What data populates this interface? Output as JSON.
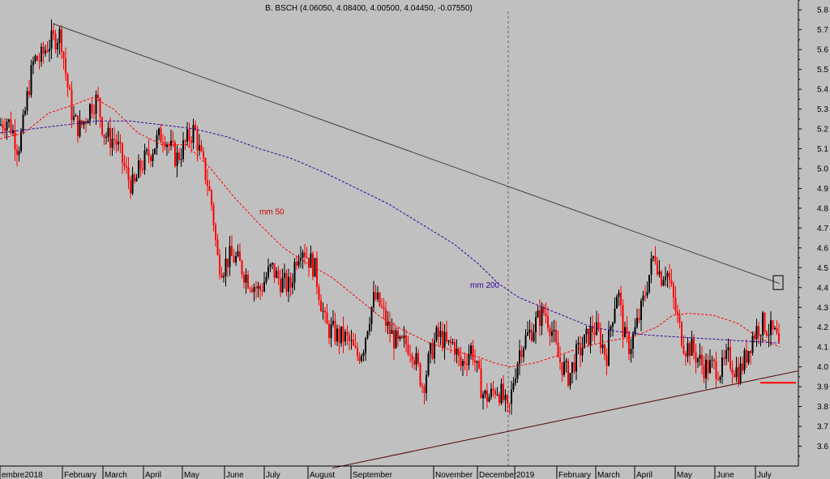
{
  "chart_data": {
    "type": "candlestick",
    "title": "B. BSCH (4.06050, 4.08400, 4.00500, 4.04450, -0.07550)",
    "ylim": [
      3.5,
      5.85
    ],
    "y_ticks": [
      3.6,
      3.7,
      3.8,
      3.9,
      4.0,
      4.1,
      4.2,
      4.3,
      4.4,
      4.5,
      4.6,
      4.7,
      4.8,
      4.9,
      5.0,
      5.1,
      5.2,
      5.3,
      5.4,
      5.5,
      5.6,
      5.7,
      5.8
    ],
    "x_ticks": [
      {
        "label": "embre2018",
        "t": 0
      },
      {
        "label": "February",
        "t": 77
      },
      {
        "label": "March",
        "t": 127
      },
      {
        "label": "April",
        "t": 177
      },
      {
        "label": "May",
        "t": 225
      },
      {
        "label": "June",
        "t": 277
      },
      {
        "label": "July",
        "t": 326
      },
      {
        "label": "August",
        "t": 380
      },
      {
        "label": "September",
        "t": 433
      },
      {
        "label": "November",
        "t": 535
      },
      {
        "label": "December",
        "t": 589
      },
      {
        "label": "2019",
        "t": 635
      },
      {
        "label": "February",
        "t": 687
      },
      {
        "label": "March",
        "t": 735
      },
      {
        "label": "April",
        "t": 783
      },
      {
        "label": "May",
        "t": 833
      },
      {
        "label": "June",
        "t": 882
      },
      {
        "label": "July",
        "t": 932
      }
    ],
    "xlim": [
      0,
      985
    ],
    "grid": false,
    "price_path": [
      [
        0,
        5.22
      ],
      [
        8,
        5.25
      ],
      [
        15,
        5.2
      ],
      [
        22,
        5.1
      ],
      [
        28,
        5.2
      ],
      [
        35,
        5.4
      ],
      [
        42,
        5.55
      ],
      [
        50,
        5.55
      ],
      [
        58,
        5.62
      ],
      [
        66,
        5.65
      ],
      [
        75,
        5.68
      ],
      [
        82,
        5.45
      ],
      [
        90,
        5.25
      ],
      [
        98,
        5.2
      ],
      [
        105,
        5.25
      ],
      [
        112,
        5.32
      ],
      [
        120,
        5.35
      ],
      [
        128,
        5.18
      ],
      [
        135,
        5.15
      ],
      [
        142,
        5.15
      ],
      [
        150,
        5.05
      ],
      [
        158,
        4.95
      ],
      [
        165,
        4.9
      ],
      [
        172,
        5.0
      ],
      [
        180,
        5.05
      ],
      [
        188,
        5.1
      ],
      [
        195,
        5.15
      ],
      [
        202,
        5.18
      ],
      [
        210,
        5.1
      ],
      [
        218,
        5.05
      ],
      [
        225,
        5.1
      ],
      [
        232,
        5.15
      ],
      [
        240,
        5.2
      ],
      [
        248,
        5.05
      ],
      [
        255,
        4.95
      ],
      [
        262,
        4.8
      ],
      [
        268,
        4.55
      ],
      [
        275,
        4.5
      ],
      [
        282,
        4.55
      ],
      [
        290,
        4.55
      ],
      [
        298,
        4.5
      ],
      [
        305,
        4.45
      ],
      [
        312,
        4.42
      ],
      [
        320,
        4.38
      ],
      [
        328,
        4.45
      ],
      [
        335,
        4.5
      ],
      [
        342,
        4.45
      ],
      [
        350,
        4.42
      ],
      [
        358,
        4.4
      ],
      [
        365,
        4.55
      ],
      [
        372,
        4.62
      ],
      [
        380,
        4.55
      ],
      [
        388,
        4.5
      ],
      [
        395,
        4.35
      ],
      [
        402,
        4.2
      ],
      [
        410,
        4.18
      ],
      [
        418,
        4.15
      ],
      [
        425,
        4.15
      ],
      [
        432,
        4.12
      ],
      [
        440,
        4.05
      ],
      [
        448,
        4.1
      ],
      [
        455,
        4.25
      ],
      [
        462,
        4.35
      ],
      [
        470,
        4.3
      ],
      [
        478,
        4.2
      ],
      [
        485,
        4.15
      ],
      [
        492,
        4.1
      ],
      [
        500,
        4.12
      ],
      [
        508,
        4.1
      ],
      [
        515,
        4.0
      ],
      [
        522,
        3.9
      ],
      [
        530,
        4.05
      ],
      [
        538,
        4.15
      ],
      [
        545,
        4.15
      ],
      [
        552,
        4.1
      ],
      [
        560,
        4.12
      ],
      [
        568,
        4.0
      ],
      [
        575,
        4.05
      ],
      [
        582,
        4.1
      ],
      [
        590,
        3.95
      ],
      [
        597,
        3.85
      ],
      [
        605,
        3.85
      ],
      [
        612,
        3.9
      ],
      [
        620,
        3.85
      ],
      [
        627,
        3.75
      ],
      [
        634,
        3.95
      ],
      [
        642,
        4.1
      ],
      [
        650,
        4.15
      ],
      [
        658,
        4.2
      ],
      [
        665,
        4.25
      ],
      [
        672,
        4.28
      ],
      [
        680,
        4.2
      ],
      [
        688,
        4.05
      ],
      [
        695,
        4.0
      ],
      [
        702,
        3.95
      ],
      [
        710,
        4.05
      ],
      [
        718,
        4.1
      ],
      [
        725,
        4.15
      ],
      [
        732,
        4.2
      ],
      [
        740,
        4.15
      ],
      [
        748,
        4.05
      ],
      [
        755,
        4.25
      ],
      [
        762,
        4.4
      ],
      [
        770,
        4.15
      ],
      [
        777,
        4.1
      ],
      [
        785,
        4.2
      ],
      [
        792,
        4.3
      ],
      [
        800,
        4.45
      ],
      [
        808,
        4.58
      ],
      [
        815,
        4.45
      ],
      [
        822,
        4.5
      ],
      [
        830,
        4.35
      ],
      [
        838,
        4.2
      ],
      [
        845,
        4.1
      ],
      [
        852,
        4.1
      ],
      [
        860,
        4.05
      ],
      [
        868,
        4.0
      ],
      [
        875,
        4.0
      ],
      [
        882,
        4.0
      ],
      [
        890,
        3.98
      ],
      [
        898,
        4.05
      ],
      [
        905,
        4.0
      ],
      [
        912,
        3.97
      ],
      [
        920,
        4.05
      ],
      [
        928,
        4.15
      ],
      [
        935,
        4.2
      ],
      [
        942,
        4.22
      ],
      [
        950,
        4.18
      ],
      [
        958,
        4.15
      ],
      [
        962,
        4.04
      ]
    ],
    "series": [
      {
        "name": "mm 50",
        "color": "#ff0000",
        "points": [
          [
            0,
            5.15
          ],
          [
            30,
            5.18
          ],
          [
            60,
            5.28
          ],
          [
            90,
            5.32
          ],
          [
            115,
            5.36
          ],
          [
            140,
            5.3
          ],
          [
            170,
            5.18
          ],
          [
            200,
            5.12
          ],
          [
            230,
            5.12
          ],
          [
            260,
            5.0
          ],
          [
            290,
            4.85
          ],
          [
            320,
            4.72
          ],
          [
            350,
            4.6
          ],
          [
            380,
            4.52
          ],
          [
            410,
            4.45
          ],
          [
            440,
            4.35
          ],
          [
            470,
            4.25
          ],
          [
            500,
            4.18
          ],
          [
            530,
            4.12
          ],
          [
            560,
            4.08
          ],
          [
            590,
            4.05
          ],
          [
            610,
            4.02
          ],
          [
            630,
            4.0
          ],
          [
            660,
            4.02
          ],
          [
            690,
            4.06
          ],
          [
            720,
            4.1
          ],
          [
            750,
            4.13
          ],
          [
            780,
            4.15
          ],
          [
            810,
            4.2
          ],
          [
            830,
            4.26
          ],
          [
            850,
            4.27
          ],
          [
            880,
            4.26
          ],
          [
            910,
            4.22
          ],
          [
            935,
            4.15
          ],
          [
            962,
            4.1
          ]
        ]
      },
      {
        "name": "mm 200",
        "color": "#330099",
        "points": [
          [
            0,
            5.18
          ],
          [
            40,
            5.2
          ],
          [
            80,
            5.22
          ],
          [
            120,
            5.24
          ],
          [
            160,
            5.24
          ],
          [
            200,
            5.22
          ],
          [
            240,
            5.2
          ],
          [
            280,
            5.16
          ],
          [
            320,
            5.1
          ],
          [
            360,
            5.05
          ],
          [
            400,
            4.98
          ],
          [
            440,
            4.9
          ],
          [
            480,
            4.82
          ],
          [
            520,
            4.72
          ],
          [
            560,
            4.62
          ],
          [
            590,
            4.52
          ],
          [
            615,
            4.42
          ],
          [
            640,
            4.35
          ],
          [
            670,
            4.3
          ],
          [
            700,
            4.25
          ],
          [
            730,
            4.2
          ],
          [
            760,
            4.18
          ],
          [
            800,
            4.16
          ],
          [
            840,
            4.15
          ],
          [
            880,
            4.14
          ],
          [
            920,
            4.13
          ],
          [
            962,
            4.12
          ]
        ]
      }
    ],
    "trendlines": [
      {
        "name": "resistance",
        "color": "#404040",
        "from": [
          66,
          5.73
        ],
        "to": [
          962,
          4.42
        ]
      },
      {
        "name": "support",
        "color": "#500000",
        "from": [
          410,
          3.49
        ],
        "to": [
          985,
          3.98
        ]
      }
    ],
    "support_mark": {
      "color": "#ff0000",
      "from_t": 938,
      "to_t": 982,
      "y": 3.92
    },
    "box_mark": {
      "t": 960,
      "y1": 4.46,
      "y2": 4.39
    },
    "vline_t": 627,
    "annotations": [
      {
        "text": "mm 50",
        "t": 320,
        "y": 4.77,
        "color": "#d00000"
      },
      {
        "text": "mm 200",
        "t": 580,
        "y": 4.4,
        "color": "#330099"
      }
    ]
  }
}
